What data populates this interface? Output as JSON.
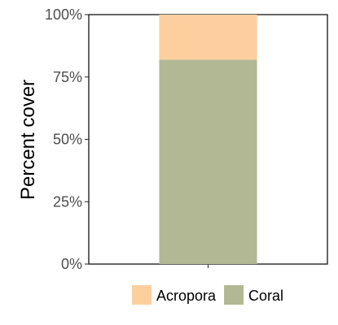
{
  "chart_data": {
    "type": "bar",
    "stacked": true,
    "categories": [
      ""
    ],
    "series": [
      {
        "name": "Coral",
        "values": [
          82
        ],
        "color": "#b3b894"
      },
      {
        "name": "Acropora",
        "values": [
          18
        ],
        "color": "#fdcf9f"
      }
    ],
    "title": "",
    "xlabel": "",
    "ylabel": "Percent cover",
    "ylim": [
      0,
      100
    ],
    "yticks": [
      0,
      25,
      50,
      75,
      100
    ],
    "ytick_labels": [
      "0%",
      "25%",
      "50%",
      "75%",
      "100%"
    ],
    "grid": false,
    "legend_position": "bottom",
    "legend_order": [
      "Acropora",
      "Coral"
    ]
  }
}
